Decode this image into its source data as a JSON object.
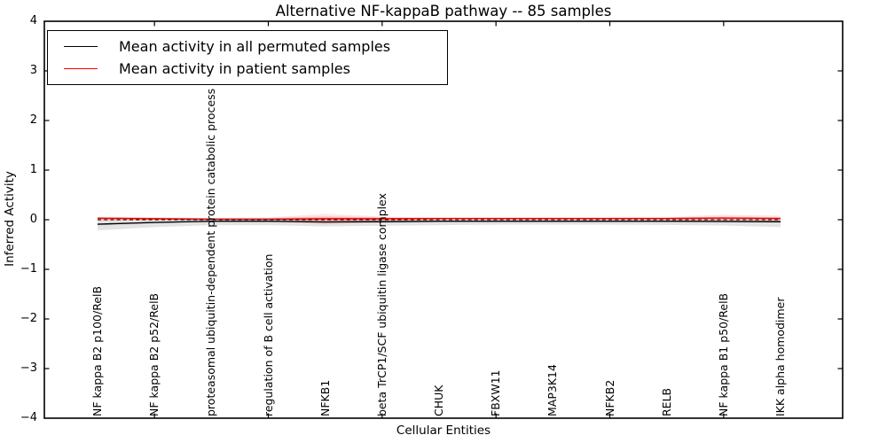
{
  "chart_data": {
    "type": "line",
    "title": "Alternative NF-kappaB pathway -- 85 samples",
    "xlabel": "Cellular Entities",
    "ylabel": "Inferred Activity",
    "ylim": [
      -4,
      4
    ],
    "yticks": [
      4,
      3,
      2,
      1,
      0,
      -1,
      -2,
      -3,
      -4
    ],
    "grid": false,
    "legend_position": "upper left",
    "zero_line": {
      "style": "dashed",
      "color": "#000000",
      "value": 0
    },
    "categories": [
      "NF kappa B2 p100/RelB",
      "NF kappa B2 p52/RelB",
      "proteasomal ubiquitin-dependent protein catabolic process",
      "regulation of B cell activation",
      "NFKB1",
      "beta TrCP1/SCF ubiquitin ligase complex",
      "CHUK",
      "FBXW11",
      "MAP3K14",
      "NFKB2",
      "RELB",
      "NF kappa B1 p50/RelB",
      "IKK alpha homodimer"
    ],
    "series": [
      {
        "name": "Mean activity in all permuted samples",
        "color": "#000000",
        "values": [
          -0.09,
          -0.055,
          -0.03,
          -0.03,
          -0.045,
          -0.04,
          -0.03,
          -0.03,
          -0.03,
          -0.03,
          -0.03,
          -0.035,
          -0.04
        ]
      },
      {
        "name": "Mean activity in patient samples",
        "color": "#ff0000",
        "values": [
          0.03,
          0.02,
          0.01,
          0.01,
          0.02,
          0.02,
          0.025,
          0.025,
          0.025,
          0.025,
          0.025,
          0.035,
          0.025
        ]
      }
    ],
    "bands": [
      {
        "name": "permuted-sample-range",
        "color": "#000000",
        "opacity": 0.11,
        "upper": [
          0.05,
          0.045,
          0.035,
          0.035,
          0.045,
          0.04,
          0.035,
          0.035,
          0.035,
          0.035,
          0.035,
          0.035,
          0.045
        ],
        "lower": [
          -0.215,
          -0.15,
          -0.11,
          -0.11,
          -0.135,
          -0.12,
          -0.11,
          -0.1,
          -0.1,
          -0.1,
          -0.105,
          -0.115,
          -0.15
        ]
      },
      {
        "name": "patient-sample-range-outer",
        "color": "#ff0000",
        "opacity": 0.1,
        "upper": [
          0.06,
          0.045,
          0.035,
          0.045,
          0.12,
          0.065,
          0.04,
          0.04,
          0.04,
          0.04,
          0.05,
          0.1,
          0.08
        ],
        "lower": [
          -0.02,
          -0.01,
          -0.01,
          -0.02,
          -0.095,
          -0.045,
          -0.01,
          -0.01,
          -0.01,
          -0.01,
          -0.01,
          -0.03,
          -0.02
        ]
      },
      {
        "name": "patient-sample-range-inner",
        "color": "#ff0000",
        "opacity": 0.13,
        "upper": [
          0.045,
          0.035,
          0.025,
          0.03,
          0.07,
          0.045,
          0.03,
          0.03,
          0.03,
          0.03,
          0.035,
          0.06,
          0.05
        ],
        "lower": [
          -0.005,
          0.0,
          0.0,
          -0.005,
          -0.05,
          -0.02,
          0.0,
          0.0,
          0.0,
          0.0,
          0.0,
          -0.01,
          -0.005
        ]
      }
    ]
  },
  "legend": {
    "items": [
      {
        "label": "Mean activity in all permuted samples",
        "color": "#000000"
      },
      {
        "label": "Mean activity in patient samples",
        "color": "#ff0000"
      }
    ]
  },
  "axes": {
    "frame_color": "#000000",
    "tick_color": "#000000",
    "background": "#ffffff"
  }
}
